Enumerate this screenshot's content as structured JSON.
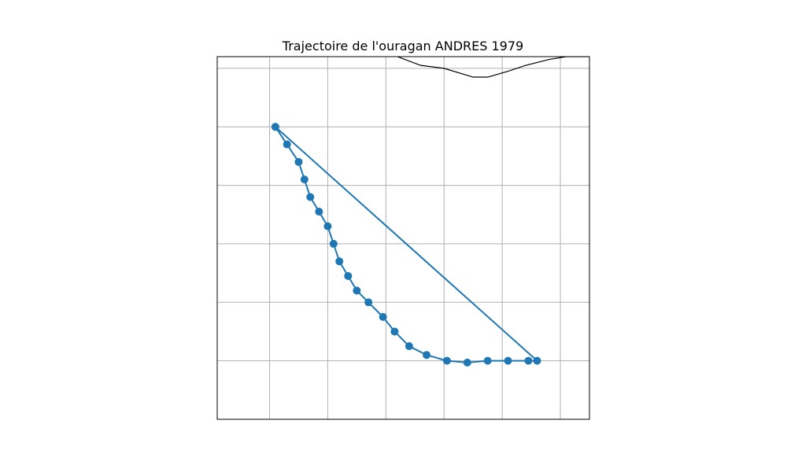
{
  "chart_data": {
    "type": "line",
    "title": "Trajectoire de l'ouragan ANDRES 1979",
    "xlabel": "",
    "ylabel": "",
    "grid": true,
    "legend": "none",
    "colors": {
      "track": "#1f77b4",
      "coastline": "#000000",
      "grid": "#b0b0b0"
    },
    "xlim": [
      -110.5,
      -104.1
    ],
    "ylim": [
      10.4,
      16.6
    ],
    "gridlines_x": [
      -109.6,
      -108.6,
      -107.6,
      -106.6,
      -105.6,
      -104.6
    ],
    "gridlines_y": [
      11.4,
      12.4,
      13.4,
      14.4,
      15.4,
      16.4
    ],
    "series": [
      {
        "x": [
          -109.5,
          -109.3,
          -109.1,
          -109.0,
          -108.9,
          -108.75,
          -108.6,
          -108.5,
          -108.4,
          -108.25,
          -108.1,
          -107.9,
          -107.65,
          -107.45,
          -107.2,
          -106.9,
          -106.55,
          -106.2,
          -105.85,
          -105.5,
          -105.15,
          -105.0,
          -109.5
        ],
        "y": [
          15.4,
          15.1,
          14.8,
          14.5,
          14.2,
          13.95,
          13.7,
          13.4,
          13.1,
          12.85,
          12.6,
          12.4,
          12.15,
          11.9,
          11.65,
          11.5,
          11.4,
          11.37,
          11.4,
          11.4,
          11.4,
          11.4,
          15.4
        ]
      }
    ],
    "coastline": {
      "x": [
        -107.4,
        -107.0,
        -106.6,
        -106.1,
        -105.85,
        -105.5,
        -105.2,
        -104.8,
        -104.5,
        -104.1
      ],
      "y": [
        16.6,
        16.45,
        16.4,
        16.25,
        16.25,
        16.35,
        16.45,
        16.55,
        16.6,
        16.6
      ]
    }
  }
}
